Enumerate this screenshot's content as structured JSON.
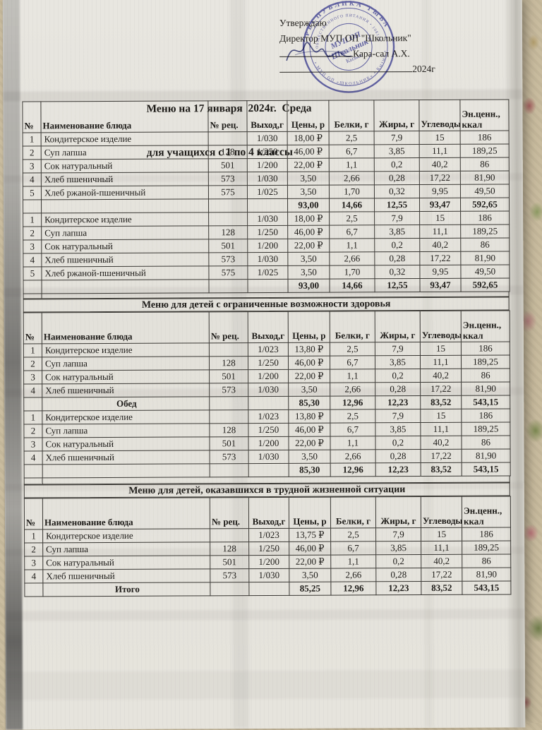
{
  "approval": {
    "line1": "Утверждаю",
    "line2": "Директор МУП ОП \"Школьник\"",
    "signatory": "Кара-сал А.Х.",
    "year": "2024г"
  },
  "title": {
    "line1": "Меню на 17 января  2024г.  Среда",
    "line2": "для учащихся с 1 по 4 классы"
  },
  "stamp": {
    "ring_top": "РЕСПУБЛИКА ТЫВА",
    "ring_inner": "ОБЩЕСТВЕННОГО ПИТАНИЯ  •  1081701  •",
    "ring_bottom": "• МУП ОП «ШКОЛЬНИК» • Кызыл •",
    "center_line1": "МУП ОП",
    "center_line2": "\"Школьник\"",
    "center_line3": "Кызыл"
  },
  "columns": {
    "no": "№",
    "name": "Наименование блюда",
    "rec": "№ рец.",
    "out": "Выход,г",
    "price": "Цены, р",
    "protein": "Белки, г",
    "fat": "Жиры, г",
    "carbs": "Углеводы",
    "kcal": "Эн.ценн., ккал"
  },
  "menu1": {
    "rows": [
      {
        "no": "1",
        "name": "Кондитерское изделие",
        "rec": "",
        "out": "1/030",
        "price": "18,00 ₽",
        "protein": "2,5",
        "fat": "7,9",
        "carbs": "15",
        "kcal": "186",
        "type": "item"
      },
      {
        "no": "2",
        "name": "Суп лапша",
        "rec": "128",
        "out": "1/250",
        "price": "46,00 ₽",
        "protein": "6,7",
        "fat": "3,85",
        "carbs": "11,1",
        "kcal": "189,25",
        "type": "item"
      },
      {
        "no": "3",
        "name": "Сок натуральный",
        "rec": "501",
        "out": "1/200",
        "price": "22,00 ₽",
        "protein": "1,1",
        "fat": "0,2",
        "carbs": "40,2",
        "kcal": "86",
        "type": "item"
      },
      {
        "no": "4",
        "name": "Хлеб пшеничный",
        "rec": "573",
        "out": "1/030",
        "price": "3,50",
        "protein": "2,66",
        "fat": "0,28",
        "carbs": "17,22",
        "kcal": "81,90",
        "type": "item"
      },
      {
        "no": "5",
        "name": "Хлеб ржаной-пшеничный",
        "rec": "575",
        "out": "1/025",
        "price": "3,50",
        "protein": "1,70",
        "fat": "0,32",
        "carbs": "9,95",
        "kcal": "49,50",
        "type": "item"
      },
      {
        "no": "",
        "name": "",
        "rec": "",
        "out": "",
        "price": "93,00",
        "protein": "14,66",
        "fat": "12,55",
        "carbs": "93,47",
        "kcal": "592,65",
        "type": "total"
      },
      {
        "no": "1",
        "name": "Кондитерское изделие",
        "rec": "",
        "out": "1/030",
        "price": "18,00 ₽",
        "protein": "2,5",
        "fat": "7,9",
        "carbs": "15",
        "kcal": "186",
        "type": "item"
      },
      {
        "no": "2",
        "name": "Суп лапша",
        "rec": "128",
        "out": "1/250",
        "price": "46,00 ₽",
        "protein": "6,7",
        "fat": "3,85",
        "carbs": "11,1",
        "kcal": "189,25",
        "type": "item"
      },
      {
        "no": "3",
        "name": "Сок натуральный",
        "rec": "501",
        "out": "1/200",
        "price": "22,00 ₽",
        "protein": "1,1",
        "fat": "0,2",
        "carbs": "40,2",
        "kcal": "86",
        "type": "item"
      },
      {
        "no": "4",
        "name": "Хлеб пшеничный",
        "rec": "573",
        "out": "1/030",
        "price": "3,50",
        "protein": "2,66",
        "fat": "0,28",
        "carbs": "17,22",
        "kcal": "81,90",
        "type": "item"
      },
      {
        "no": "5",
        "name": "Хлеб ржаной-пшеничный",
        "rec": "575",
        "out": "1/025",
        "price": "3,50",
        "protein": "1,70",
        "fat": "0,32",
        "carbs": "9,95",
        "kcal": "49,50",
        "type": "item"
      },
      {
        "no": "",
        "name": "",
        "rec": "",
        "out": "",
        "price": "93,00",
        "protein": "14,66",
        "fat": "12,55",
        "carbs": "93,47",
        "kcal": "592,65",
        "type": "total"
      }
    ]
  },
  "menu2": {
    "title": "Меню для детей с ограниченные возможности здоровья",
    "rows": [
      {
        "no": "1",
        "name": "Кондитерское изделие",
        "rec": "",
        "out": "1/023",
        "price": "13,80 ₽",
        "protein": "2,5",
        "fat": "7,9",
        "carbs": "15",
        "kcal": "186",
        "type": "item"
      },
      {
        "no": "2",
        "name": "Суп лапша",
        "rec": "128",
        "out": "1/250",
        "price": "46,00 ₽",
        "protein": "6,7",
        "fat": "3,85",
        "carbs": "11,1",
        "kcal": "189,25",
        "type": "item"
      },
      {
        "no": "3",
        "name": "Сок натуральный",
        "rec": "501",
        "out": "1/200",
        "price": "22,00 ₽",
        "protein": "1,1",
        "fat": "0,2",
        "carbs": "40,2",
        "kcal": "86",
        "type": "item"
      },
      {
        "no": "4",
        "name": "Хлеб пшеничный",
        "rec": "573",
        "out": "1/030",
        "price": "3,50",
        "protein": "2,66",
        "fat": "0,28",
        "carbs": "17,22",
        "kcal": "81,90",
        "type": "item"
      },
      {
        "no": "",
        "name": "Обед",
        "rec": "",
        "out": "",
        "price": "85,30",
        "protein": "12,96",
        "fat": "12,23",
        "carbs": "83,52",
        "kcal": "543,15",
        "type": "total"
      },
      {
        "no": "1",
        "name": "Кондитерское изделие",
        "rec": "",
        "out": "1/023",
        "price": "13,80 ₽",
        "protein": "2,5",
        "fat": "7,9",
        "carbs": "15",
        "kcal": "186",
        "type": "item"
      },
      {
        "no": "2",
        "name": "Суп лапша",
        "rec": "128",
        "out": "1/250",
        "price": "46,00 ₽",
        "protein": "6,7",
        "fat": "3,85",
        "carbs": "11,1",
        "kcal": "189,25",
        "type": "item"
      },
      {
        "no": "3",
        "name": "Сок натуральный",
        "rec": "501",
        "out": "1/200",
        "price": "22,00 ₽",
        "protein": "1,1",
        "fat": "0,2",
        "carbs": "40,2",
        "kcal": "86",
        "type": "item"
      },
      {
        "no": "4",
        "name": "Хлеб пшеничный",
        "rec": "573",
        "out": "1/030",
        "price": "3,50",
        "protein": "2,66",
        "fat": "0,28",
        "carbs": "17,22",
        "kcal": "81,90",
        "type": "item"
      },
      {
        "no": "",
        "name": "",
        "rec": "",
        "out": "",
        "price": "85,30",
        "protein": "12,96",
        "fat": "12,23",
        "carbs": "83,52",
        "kcal": "543,15",
        "type": "total"
      }
    ]
  },
  "menu3": {
    "title": "Меню для детей, оказавшихся в трудной жизненной ситуации",
    "rows": [
      {
        "no": "1",
        "name": "Кондитерское изделие",
        "rec": "",
        "out": "1/023",
        "price": "13,75 ₽",
        "protein": "2,5",
        "fat": "7,9",
        "carbs": "15",
        "kcal": "186",
        "type": "item"
      },
      {
        "no": "2",
        "name": "Суп лапша",
        "rec": "128",
        "out": "1/250",
        "price": "46,00 ₽",
        "protein": "6,7",
        "fat": "3,85",
        "carbs": "11,1",
        "kcal": "189,25",
        "type": "item"
      },
      {
        "no": "3",
        "name": "Сок натуральный",
        "rec": "501",
        "out": "1/200",
        "price": "22,00 ₽",
        "protein": "1,1",
        "fat": "0,2",
        "carbs": "40,2",
        "kcal": "86",
        "type": "item"
      },
      {
        "no": "4",
        "name": "Хлеб пшеничный",
        "rec": "573",
        "out": "1/030",
        "price": "3,50",
        "protein": "2,66",
        "fat": "0,28",
        "carbs": "17,22",
        "kcal": "81,90",
        "type": "item"
      },
      {
        "no": "",
        "name": "Итого",
        "rec": "",
        "out": "",
        "price": "85,25",
        "protein": "12,96",
        "fat": "12,23",
        "carbs": "83,52",
        "kcal": "543,15",
        "type": "total"
      }
    ]
  },
  "colors": {
    "stamp_blue": "#4547a6",
    "paper": "#e4e2db",
    "ink": "#1d1b18",
    "tablecloth": "#c9bc9f"
  }
}
